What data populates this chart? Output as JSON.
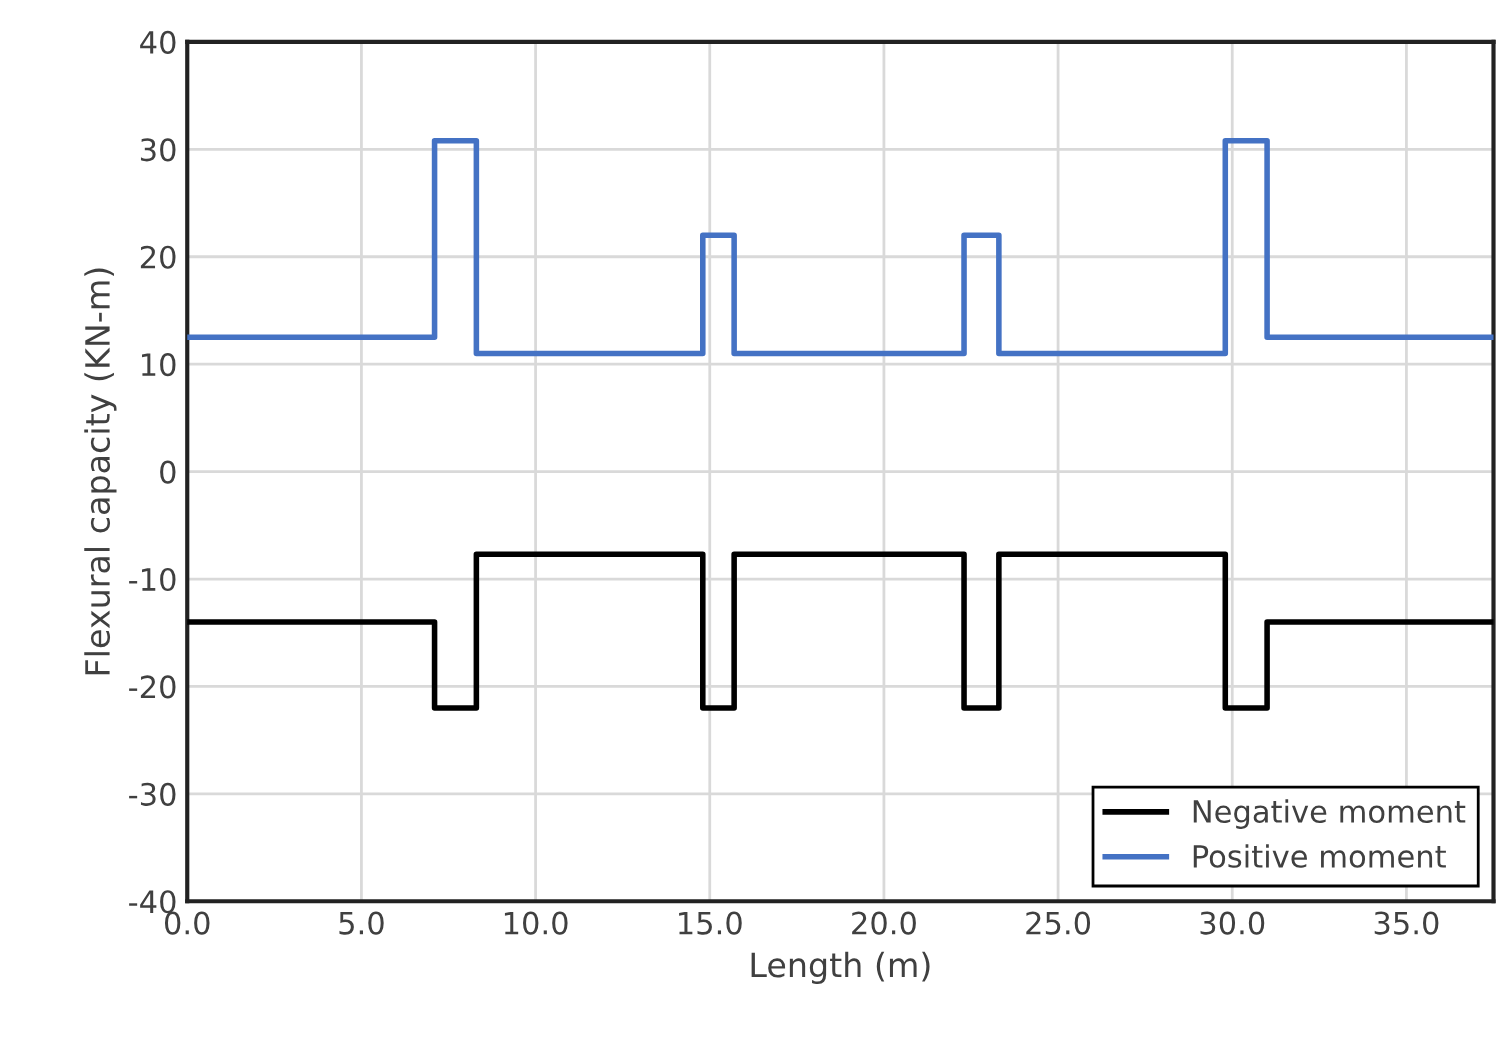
{
  "chart_data": {
    "type": "line",
    "xlabel": "Length (m)",
    "ylabel": "Flexural capacity (KN-m)",
    "series": [
      {
        "name": "Negative moment",
        "color": "#000000",
        "x": [
          0,
          7.1,
          7.1,
          8.3,
          8.3,
          14.8,
          14.8,
          15.7,
          15.7,
          22.3,
          22.3,
          23.3,
          23.3,
          29.8,
          29.8,
          31.0,
          31.0,
          37.5
        ],
        "values": [
          -14,
          -14,
          -22,
          -22,
          -7.7,
          -7.7,
          -22,
          -22,
          -7.7,
          -7.7,
          -22,
          -22,
          -7.7,
          -7.7,
          -22,
          -22,
          -14,
          -14
        ]
      },
      {
        "name": "Positive moment",
        "color": "#4472c4",
        "x": [
          0,
          7.1,
          7.1,
          8.3,
          8.3,
          14.8,
          14.8,
          15.7,
          15.7,
          22.3,
          22.3,
          23.3,
          23.3,
          29.8,
          29.8,
          31.0,
          31.0,
          37.5
        ],
        "values": [
          12.5,
          12.5,
          30.8,
          30.8,
          11,
          11,
          22,
          22,
          11,
          11,
          22,
          22,
          11,
          11,
          30.8,
          30.8,
          12.5,
          12.5
        ]
      }
    ],
    "xlim": [
      0,
      37.5
    ],
    "xticks": [
      {
        "value": 0,
        "label": "0.0"
      },
      {
        "value": 5,
        "label": "5.0"
      },
      {
        "value": 10,
        "label": "10.0"
      },
      {
        "value": 15,
        "label": "15.0"
      },
      {
        "value": 20,
        "label": "20.0"
      },
      {
        "value": 25,
        "label": "25.0"
      },
      {
        "value": 30,
        "label": "30.0"
      },
      {
        "value": 35,
        "label": "35.0"
      }
    ],
    "ylim": [
      -40,
      40
    ],
    "yticks": [
      -40,
      -30,
      -20,
      -10,
      0,
      10,
      20,
      30,
      40
    ],
    "grid": true,
    "legend": "bottom right",
    "marker": "none",
    "line_style": "solid"
  }
}
